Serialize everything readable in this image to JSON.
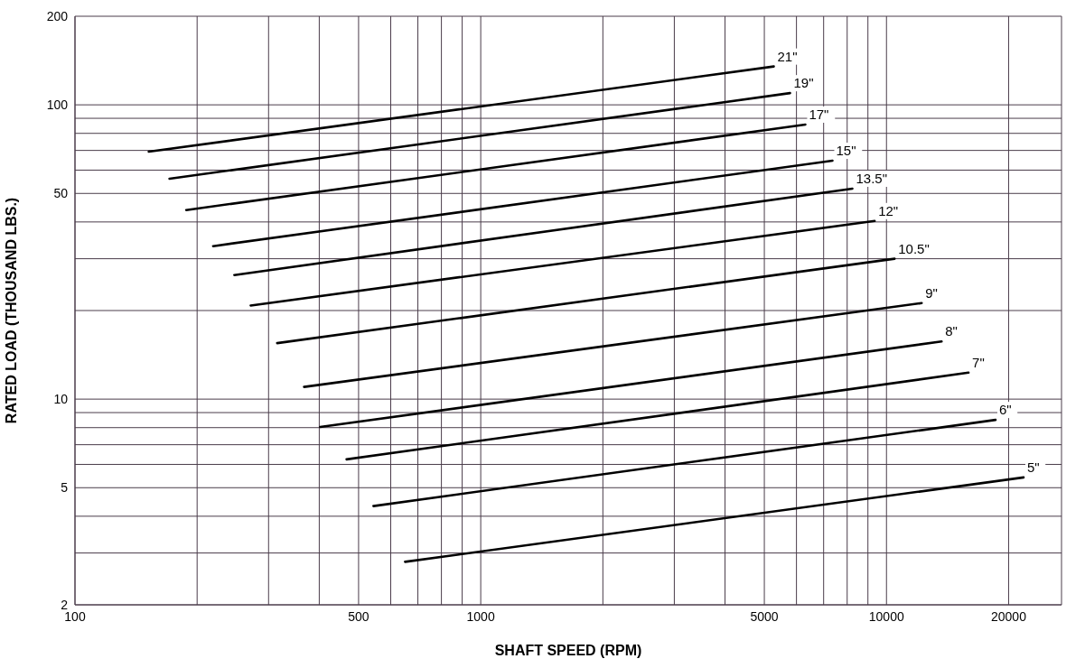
{
  "chart_data": {
    "type": "line",
    "xlabel": "SHAFT SPEED (RPM)",
    "ylabel": "RATED LOAD (THOUSAND LBS.)",
    "log": "xy",
    "grid": true,
    "legend": false,
    "marker": "none",
    "line_style": "solid",
    "xlim": [
      100,
      27000
    ],
    "ylim": [
      2,
      200
    ],
    "xticks": [
      100,
      {
        "value": 200,
        "label": null
      },
      {
        "value": 300,
        "label": null
      },
      {
        "value": 400,
        "label": null
      },
      500,
      {
        "value": 600,
        "label": null
      },
      {
        "value": 700,
        "label": null
      },
      {
        "value": 800,
        "label": null
      },
      {
        "value": 900,
        "label": null
      },
      1000,
      {
        "value": 2000,
        "label": null
      },
      {
        "value": 3000,
        "label": null
      },
      {
        "value": 4000,
        "label": null
      },
      5000,
      {
        "value": 6000,
        "label": null
      },
      {
        "value": 7000,
        "label": null
      },
      {
        "value": 8000,
        "label": null
      },
      {
        "value": 9000,
        "label": null
      },
      10000,
      20000
    ],
    "yticks": [
      2,
      {
        "value": 3,
        "label": null
      },
      {
        "value": 4,
        "label": null
      },
      5,
      {
        "value": 6,
        "label": null
      },
      {
        "value": 7,
        "label": null
      },
      {
        "value": 8,
        "label": null
      },
      {
        "value": 9,
        "label": null
      },
      10,
      {
        "value": 20,
        "label": null
      },
      {
        "value": 30,
        "label": null
      },
      {
        "value": 40,
        "label": null
      },
      50,
      {
        "value": 60,
        "label": null
      },
      {
        "value": 70,
        "label": null
      },
      {
        "value": 80,
        "label": null
      },
      {
        "value": 90,
        "label": null
      },
      100,
      200
    ],
    "series": [
      {
        "name": "21\"",
        "color": "#000000",
        "x": [
          152,
          5275
        ],
        "values": [
          69.3,
          135
        ]
      },
      {
        "name": "19\"",
        "color": "#000000",
        "x": [
          171,
          5785
        ],
        "values": [
          56.1,
          109.6
        ]
      },
      {
        "name": "17\"",
        "color": "#000000",
        "x": [
          188,
          6310
        ],
        "values": [
          43.9,
          85.7
        ]
      },
      {
        "name": "15\"",
        "color": "#000000",
        "x": [
          219,
          7360
        ],
        "values": [
          33.1,
          64.6
        ]
      },
      {
        "name": "13.5\"",
        "color": "#000000",
        "x": [
          247,
          8240
        ],
        "values": [
          26.4,
          51.9
        ]
      },
      {
        "name": "12\"",
        "color": "#000000",
        "x": [
          271,
          9350
        ],
        "values": [
          20.8,
          40.3
        ]
      },
      {
        "name": "10.5\"",
        "color": "#000000",
        "x": [
          315,
          10470
        ],
        "values": [
          15.5,
          30.0
        ]
      },
      {
        "name": "9\"",
        "color": "#000000",
        "x": [
          367,
          12210
        ],
        "values": [
          11.0,
          21.2
        ]
      },
      {
        "name": "8\"",
        "color": "#000000",
        "x": [
          402,
          13670
        ],
        "values": [
          8.04,
          15.7
        ]
      },
      {
        "name": "7\"",
        "color": "#000000",
        "x": [
          467,
          15930
        ],
        "values": [
          6.24,
          12.3
        ]
      },
      {
        "name": "6\"",
        "color": "#000000",
        "x": [
          544,
          18570
        ],
        "values": [
          4.33,
          8.5
        ]
      },
      {
        "name": "5\"",
        "color": "#000000",
        "x": [
          651,
          21770
        ],
        "values": [
          2.8,
          5.42
        ]
      }
    ]
  }
}
